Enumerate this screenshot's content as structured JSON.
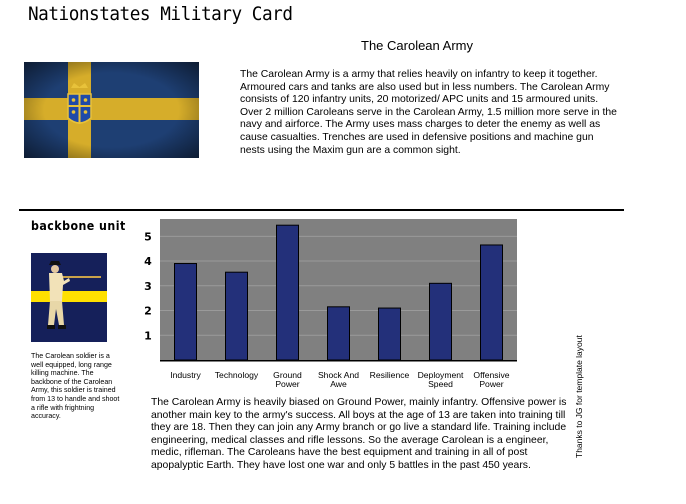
{
  "header": {
    "title": "Nationstates Military Card"
  },
  "army": {
    "name": "The Carolean Army",
    "intro": "The Carolean Army is a army that relies heavily on infantry to keep it together. Armoured cars and tanks are also used but in less numbers. The Carolean Army consists of 120 infantry units, 20 motorized/ APC units and 15 armoured units. Over 2 million Caroleans serve in the Carolean Army, 1.5 million more serve in the navy and airforce. The Army uses mass charges to deter the enemy as well as cause casualties. Trenches are used in defensive positions and machine gun nests using the Maxim gun are a common sight.",
    "flag_colors": {
      "field": "#1e3f73",
      "cross": "#d6ad2a"
    }
  },
  "backbone": {
    "label": "backbone unit",
    "description": "The Carolean soldier is a well equipped, long range killing machine. The backbone of the Carolean Army, this soldier is trained from 13 to handle and shoot a rifle with frightning accuracy.",
    "colors": {
      "bg": "#15205a",
      "stripe": "#ffe000"
    }
  },
  "chart_data": {
    "type": "bar",
    "categories": [
      [
        "Industry"
      ],
      [
        "Technology"
      ],
      [
        "Ground",
        "Power"
      ],
      [
        "Shock And",
        "Awe"
      ],
      [
        "Resilience"
      ],
      [
        "Deployment",
        "Speed"
      ],
      [
        "Offensive",
        "Power"
      ]
    ],
    "values": [
      3.9,
      3.55,
      5.45,
      2.15,
      2.1,
      3.1,
      4.65
    ],
    "yticks": [
      1,
      2,
      3,
      4,
      5
    ],
    "ylim": [
      0,
      5.7
    ],
    "colors": {
      "bar": "#23307a",
      "plot_bg": "#808080",
      "grid": "#9a9a9a"
    }
  },
  "summary": "The Carolean Army is heavily biased on Ground Power, mainly infantry. Offensive power is another main key to the army's success. All boys at the age of 13 are taken into training till they are 18. Then they can join any Army branch or go live a standard life. Training include engineering, medical classes and rifle lessons. So the average Carolean is a engineer, medic, rifleman. The Caroleans have the best equipment and training in all of post apopalyptic Earth. They have lost one war and only 5 battles in the past 450 years.",
  "credit": "Thanks to JG for template layout"
}
